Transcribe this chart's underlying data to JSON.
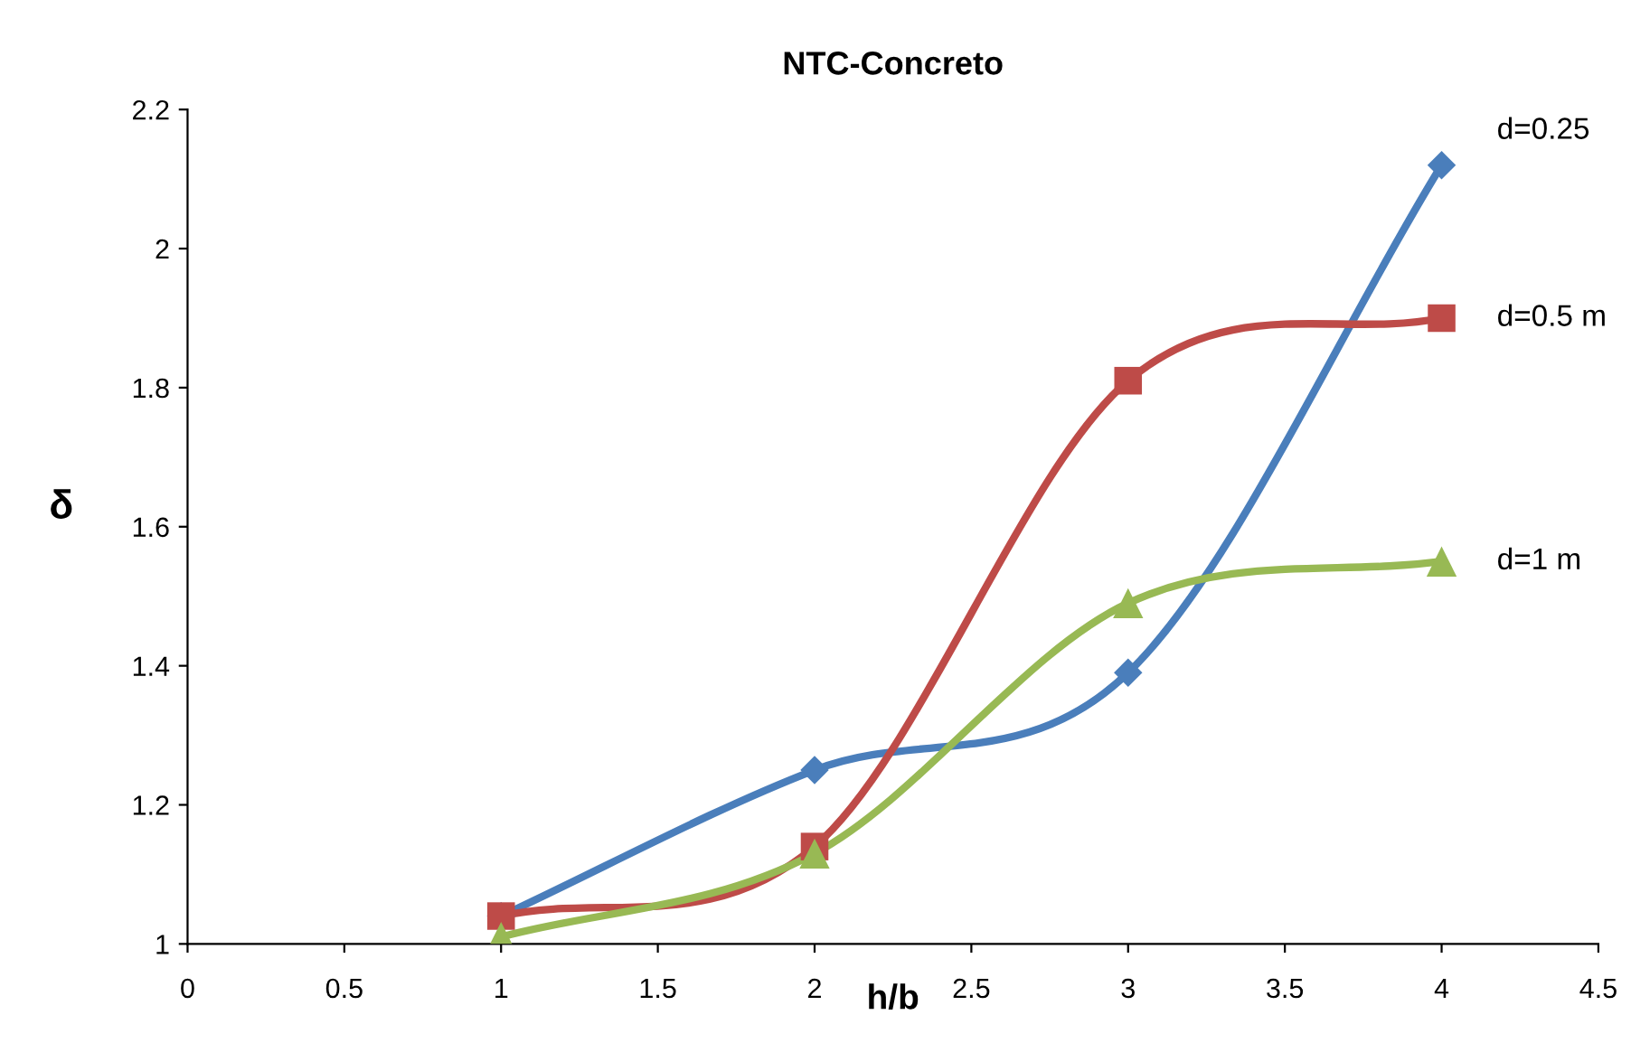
{
  "chart_data": {
    "type": "line",
    "title": "NTC-Concreto",
    "xlabel": "h/b",
    "ylabel": "δ",
    "xlim": [
      0,
      4.5
    ],
    "xticks": [
      0,
      0.5,
      1,
      1.5,
      2,
      2.5,
      3,
      3.5,
      4,
      4.5
    ],
    "ylim": [
      1,
      2.2
    ],
    "yticks": [
      1,
      1.2,
      1.4,
      1.6,
      1.8,
      2,
      2.2
    ],
    "grid": false,
    "legend": false,
    "line_style": "solid",
    "series": [
      {
        "name": "d=0.25",
        "color": "#4a7ebb",
        "marker": "diamond",
        "x": [
          1,
          2,
          3,
          4
        ],
        "values": [
          1.04,
          1.25,
          1.39,
          2.12
        ]
      },
      {
        "name": "d=0.5 m",
        "color": "#be4b48",
        "marker": "square",
        "x": [
          1,
          2,
          3,
          4
        ],
        "values": [
          1.04,
          1.14,
          1.81,
          1.9
        ]
      },
      {
        "name": "d=1 m",
        "color": "#98b954",
        "marker": "triangle",
        "x": [
          1,
          2,
          3,
          4
        ],
        "values": [
          1.01,
          1.13,
          1.49,
          1.55
        ]
      }
    ]
  }
}
